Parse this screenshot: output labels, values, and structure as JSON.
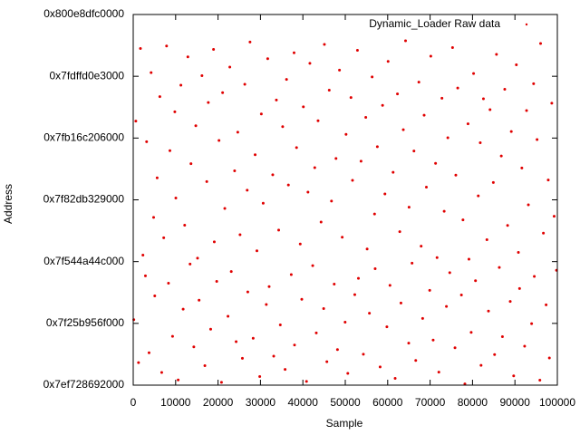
{
  "chart_data": {
    "type": "scatter",
    "xlabel": "Sample",
    "ylabel": "Address",
    "xlim": [
      0,
      100000
    ],
    "xticks": [
      0,
      10000,
      20000,
      30000,
      40000,
      50000,
      60000,
      70000,
      80000,
      90000,
      100000
    ],
    "ylim": [
      139600000000000.0,
      140800000000000.0
    ],
    "yticks": [
      {
        "value": 139600000000000.0,
        "label": "0x7ef728692000"
      },
      {
        "value": 139800000000000.0,
        "label": "0x7f25b956f000"
      },
      {
        "value": 140000000000000.0,
        "label": "0x7f544a44c000"
      },
      {
        "value": 140200000000000.0,
        "label": "0x7f82db329000"
      },
      {
        "value": 140400000000000.0,
        "label": "0x7fb16c206000"
      },
      {
        "value": 140600000000000.0,
        "label": "0x7fdffd0e3000"
      },
      {
        "value": 140800000000000.0,
        "label": "0x800e8dfc0000"
      }
    ],
    "legend": "top-right",
    "x": [
      137,
      612,
      1248,
      1703,
      2291,
      2880,
      3156,
      3734,
      4219,
      4807,
      5081,
      5642,
      6277,
      6718,
      7190,
      7863,
      8314,
      8652,
      9275,
      9811,
      10048,
      10596,
      11239,
      11774,
      12130,
      12885,
      13402,
      13617,
      14290,
      14756,
      15163,
      15528,
      16209,
      16893,
      17340,
      17702,
      18261,
      18935,
      19114,
      19687,
      20225,
      20814,
      21076,
      21590,
      22347,
      22781,
      23118,
      23906,
      24263,
      24652,
      25190,
      25739,
      26305,
      26871,
      27012,
      27538,
      28277,
      28745,
      29164,
      29833,
      30208,
      30641,
      31380,
      31712,
      32049,
      32896,
      33125,
      33754,
      34301,
      34679,
      35236,
      35810,
      36147,
      36588,
      37262,
      37923,
      38034,
      38507,
      39381,
      39742,
      40115,
      40860,
      41203,
      41655,
      42318,
      42799,
      43164,
      43582,
      44290,
      44901,
      45076,
      45663,
      46218,
      46749,
      47390,
      47812,
      48157,
      48634,
      49277,
      49958,
      50182,
      50597,
      51341,
      51706,
      52235,
      52868,
      53099,
      53715,
      54264,
      54833,
      55150,
      55688,
      56327,
      56902,
      57043,
      57561,
      58216,
      58790,
      59349,
      59811,
      60094,
      60537,
      61276,
      61759,
      62301,
      62844,
      63127,
      63682,
      64210,
      64955,
      65038,
      65741,
      66193,
      66616,
      67348,
      67887,
      68240,
      68593,
      69122,
      69904,
      70165,
      70720,
      71287,
      71633,
      72059,
      72791,
      73318,
      73845,
      74177,
      74630,
      75293,
      75867,
      76064,
      76512,
      77385,
      77749,
      78201,
      78937,
      79160,
      79688,
      80249,
      80703,
      81356,
      81822,
      82014,
      82575,
      83392,
      83761,
      84130,
      84906,
      85201,
      85649,
      86318,
      86784,
      87053,
      87598,
      88271,
      88890,
      89144,
      89705,
      90336,
      90817,
      91095,
      91632,
      92287,
      92741,
      93170,
      93934,
      94402,
      94569,
      95218,
      95883,
      96047,
      96711,
      97352,
      97856,
      98123,
      98690,
      99245,
      99802
    ],
    "series": [
      {
        "name": "Dynamic_Loader Raw data",
        "color": "#e00000",
        "values": [
          139812000000000.0,
          140455000000000.0,
          139673000000000.0,
          140690000000000.0,
          140021000000000.0,
          139954000000000.0,
          140388000000000.0,
          139705000000000.0,
          140612000000000.0,
          140143000000000.0,
          139889000000000.0,
          140271000000000.0,
          140534000000000.0,
          139641000000000.0,
          140077000000000.0,
          140698000000000.0,
          139930000000000.0,
          140359000000000.0,
          139758000000000.0,
          140485000000000.0,
          140206000000000.0,
          139617000000000.0,
          140571000000000.0,
          139846000000000.0,
          140118000000000.0,
          140663000000000.0,
          139992000000000.0,
          140317000000000.0,
          139724000000000.0,
          140440000000000.0,
          140011000000000.0,
          139875000000000.0,
          140602000000000.0,
          139663000000000.0,
          140259000000000.0,
          140515000000000.0,
          139781000000000.0,
          140687000000000.0,
          140064000000000.0,
          139936000000000.0,
          140392000000000.0,
          139609000000000.0,
          140547000000000.0,
          140172000000000.0,
          139823000000000.0,
          140630000000000.0,
          139968000000000.0,
          140294000000000.0,
          139741000000000.0,
          140419000000000.0,
          140087000000000.0,
          139687000000000.0,
          140574000000000.0,
          140231000000000.0,
          139902000000000.0,
          140711000000000.0,
          139752000000000.0,
          140346000000000.0,
          140035000000000.0,
          139628000000000.0,
          140478000000000.0,
          140189000000000.0,
          139861000000000.0,
          140657000000000.0,
          139919000000000.0,
          140281000000000.0,
          139694000000000.0,
          140523000000000.0,
          140102000000000.0,
          139795000000000.0,
          140437000000000.0,
          139651000000000.0,
          140590000000000.0,
          140248000000000.0,
          139958000000000.0,
          140676000000000.0,
          139730000000000.0,
          140369000000000.0,
          140057000000000.0,
          139878000000000.0,
          140501000000000.0,
          139612000000000.0,
          140225000000000.0,
          140642000000000.0,
          139987000000000.0,
          140304000000000.0,
          139769000000000.0,
          140456000000000.0,
          140128000000000.0,
          139848000000000.0,
          140703000000000.0,
          139676000000000.0,
          140555000000000.0,
          140196000000000.0,
          139927000000000.0,
          140334000000000.0,
          139715000000000.0,
          140620000000000.0,
          140079000000000.0,
          139804000000000.0,
          140412000000000.0,
          139638000000000.0,
          140531000000000.0,
          140263000000000.0,
          139893000000000.0,
          140684000000000.0,
          139946000000000.0,
          140325000000000.0,
          139700000000000.0,
          140467000000000.0,
          140041000000000.0,
          139833000000000.0,
          140598000000000.0,
          140154000000000.0,
          139977000000000.0,
          140372000000000.0,
          139659000000000.0,
          140506000000000.0,
          140219000000000.0,
          139789000000000.0,
          140648000000000.0,
          139923000000000.0,
          140289000000000.0,
          139622000000000.0,
          140543000000000.0,
          140097000000000.0,
          139866000000000.0,
          140427000000000.0,
          140715000000000.0,
          139736000000000.0,
          140176000000000.0,
          139995000000000.0,
          140358000000000.0,
          139680000000000.0,
          140581000000000.0,
          140050000000000.0,
          139816000000000.0,
          140474000000000.0,
          140241000000000.0,
          139907000000000.0,
          140665000000000.0,
          139746000000000.0,
          140318000000000.0,
          140013000000000.0,
          139642000000000.0,
          140529000000000.0,
          140163000000000.0,
          139855000000000.0,
          140401000000000.0,
          139964000000000.0,
          140693000000000.0,
          139721000000000.0,
          140280000000000.0,
          140562000000000.0,
          139892000000000.0,
          140135000000000.0,
          139604000000000.0,
          140446000000000.0,
          140008000000000.0,
          139771000000000.0,
          140609000000000.0,
          139938000000000.0,
          140213000000000.0,
          140385000000000.0,
          139664000000000.0,
          140527000000000.0,
          140071000000000.0,
          139840000000000.0,
          140492000000000.0,
          140256000000000.0,
          139699000000000.0,
          140671000000000.0,
          139981000000000.0,
          140342000000000.0,
          139757000000000.0,
          140558000000000.0,
          140117000000000.0,
          139871000000000.0,
          140421000000000.0,
          139630000000000.0,
          140637000000000.0,
          140030000000000.0,
          139913000000000.0,
          140303000000000.0,
          139726000000000.0,
          140489000000000.0,
          140184000000000.0,
          139799000000000.0,
          140576000000000.0,
          139952000000000.0,
          140395000000000.0,
          139616000000000.0,
          140706000000000.0,
          140092000000000.0,
          139860000000000.0,
          140264000000000.0,
          139688000000000.0,
          140513000000000.0,
          140147000000000.0,
          139972000000000.0
        ]
      }
    ]
  }
}
